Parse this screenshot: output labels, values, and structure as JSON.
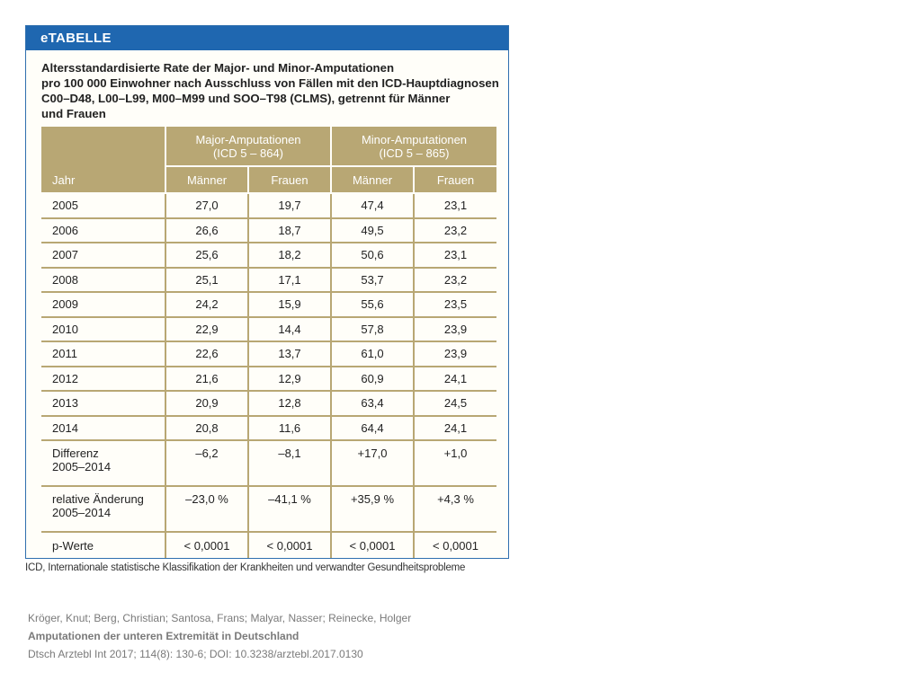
{
  "header": {
    "band_label": "eTABELLE"
  },
  "title": {
    "line1": "Altersstandardisierte Rate der Major- und Minor-Amputationen",
    "line2": "pro 100 000 Einwohner nach Ausschluss von Fällen mit den ICD-Hauptdiagnosen",
    "line3": "C00–D48, L00–L99, M00–M99 und SOO–T98 (CLMS), getrennt für Männer",
    "line4": "und Frauen"
  },
  "table": {
    "group1": {
      "line1": "Major-Amputationen",
      "line2": "(ICD 5 – 864)"
    },
    "group2": {
      "line1": "Minor-Amputationen",
      "line2": "(ICD 5 – 865)"
    },
    "col_year": "Jahr",
    "col_m1": "Männer",
    "col_f1": "Frauen",
    "col_m2": "Männer",
    "col_f2": "Frauen",
    "rows": [
      {
        "label": "2005",
        "label2": "",
        "v": [
          "27,0",
          "19,7",
          "47,4",
          "23,1"
        ]
      },
      {
        "label": "2006",
        "label2": "",
        "v": [
          "26,6",
          "18,7",
          "49,5",
          "23,2"
        ]
      },
      {
        "label": "2007",
        "label2": "",
        "v": [
          "25,6",
          "18,2",
          "50,6",
          "23,1"
        ]
      },
      {
        "label": "2008",
        "label2": "",
        "v": [
          "25,1",
          "17,1",
          "53,7",
          "23,2"
        ]
      },
      {
        "label": "2009",
        "label2": "",
        "v": [
          "24,2",
          "15,9",
          "55,6",
          "23,5"
        ]
      },
      {
        "label": "2010",
        "label2": "",
        "v": [
          "22,9",
          "14,4",
          "57,8",
          "23,9"
        ]
      },
      {
        "label": "2011",
        "label2": "",
        "v": [
          "22,6",
          "13,7",
          "61,0",
          "23,9"
        ]
      },
      {
        "label": "2012",
        "label2": "",
        "v": [
          "21,6",
          "12,9",
          "60,9",
          "24,1"
        ]
      },
      {
        "label": "2013",
        "label2": "",
        "v": [
          "20,9",
          "12,8",
          "63,4",
          "24,5"
        ]
      },
      {
        "label": "2014",
        "label2": "",
        "v": [
          "20,8",
          "11,6",
          "64,4",
          "24,1"
        ]
      },
      {
        "label": "Differenz",
        "label2": "2005–2014",
        "v": [
          "–6,2",
          "–8,1",
          "+17,0",
          "+1,0"
        ]
      },
      {
        "label": "relative Änderung",
        "label2": "2005–2014",
        "v": [
          "–23,0 %",
          "–41,1 %",
          "+35,9 %",
          "+4,3 %"
        ]
      },
      {
        "label": "p-Werte",
        "label2": "",
        "v": [
          "< 0,0001",
          "< 0,0001",
          "< 0,0001",
          "< 0,0001"
        ]
      }
    ]
  },
  "footnote": "ICD, Internationale statistische Klassifikation der Krankheiten und verwandter Gesundheitsprobleme",
  "citation": {
    "authors": "Kröger, Knut; Berg, Christian; Santosa, Frans; Malyar, Nasser; Reinecke, Holger",
    "article_title": "Amputationen der unteren Extremität in Deutschland",
    "source": "Dtsch Arztebl Int 2017; 114(8): 130-6; DOI: 10.3238/arztebl.2017.0130"
  }
}
